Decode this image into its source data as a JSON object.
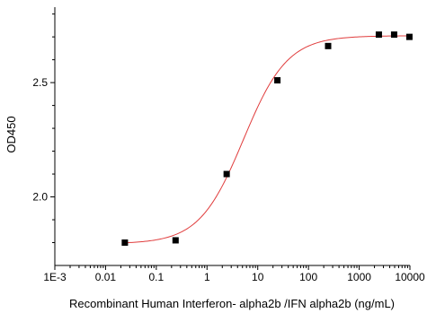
{
  "chart_data": {
    "type": "scatter",
    "title": "",
    "xlabel": "Recombinant Human Interferon- alpha2b /IFN alpha2b (ng/mL)",
    "ylabel": "OD450",
    "xscale": "log",
    "xlim": [
      0.001,
      10000
    ],
    "ylim": [
      1.7,
      2.83
    ],
    "x_ticks": [
      {
        "value": 0.001,
        "label": "1E-3"
      },
      {
        "value": 0.01,
        "label": "0.01"
      },
      {
        "value": 0.1,
        "label": "0.1"
      },
      {
        "value": 1,
        "label": "1"
      },
      {
        "value": 10,
        "label": "10"
      },
      {
        "value": 100,
        "label": "100"
      },
      {
        "value": 1000,
        "label": "1000"
      },
      {
        "value": 10000,
        "label": "10000"
      }
    ],
    "y_ticks": [
      {
        "value": 2.0,
        "label": "2.0"
      },
      {
        "value": 2.5,
        "label": "2.5"
      }
    ],
    "grid": false,
    "legend": "none",
    "points": {
      "x": [
        0.024,
        0.24,
        2.44,
        24.4,
        244,
        2441,
        4883,
        9766
      ],
      "y": [
        1.8,
        1.81,
        2.1,
        2.51,
        2.66,
        2.71,
        2.71,
        2.7
      ],
      "marker": "square",
      "color": "#000000"
    },
    "fit": {
      "model": "4PL",
      "bottom": 1.795,
      "top": 2.705,
      "ec50": 5.2,
      "hill": 1.0,
      "color": "#e03c3c"
    }
  }
}
